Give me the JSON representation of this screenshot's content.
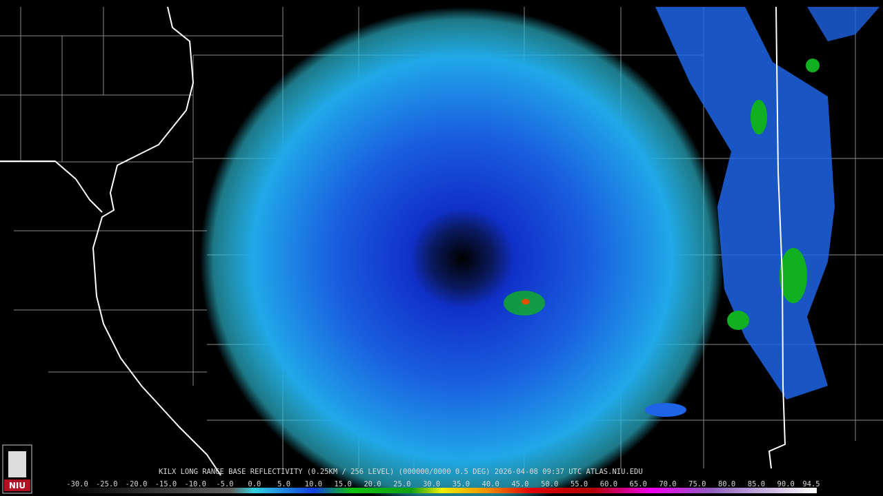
{
  "header": {
    "title": "KILX LONG RANGE BASE REFLECTIVITY (0.25KM / 256 LEVEL) (000000/0000 0.5 DEG) 2026-04-08 09:37 UTC  ATLAS.NIU.EDU"
  },
  "logo": {
    "text": "NIU"
  },
  "legend": {
    "labels": [
      "-30.0",
      "-25.0",
      "-20.0",
      "-15.0",
      "-10.0",
      "-5.0",
      "0.0",
      "5.0",
      "10.0",
      "15.0",
      "20.0",
      "25.0",
      "30.0",
      "35.0",
      "40.0",
      "45.0",
      "50.0",
      "55.0",
      "60.0",
      "65.0",
      "70.0",
      "75.0",
      "80.0",
      "85.0",
      "90.0",
      "94.5"
    ]
  }
}
